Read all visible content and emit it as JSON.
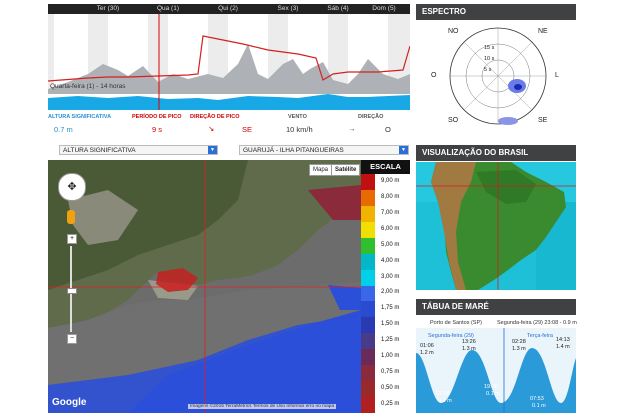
{
  "forecast": {
    "days": [
      "Ter (30)",
      "Qua (1)",
      "Qui (2)",
      "Sex (3)",
      "Sáb (4)",
      "Dom (5)"
    ],
    "cursor_label": "Quarta-feira (1) - 14 horas",
    "stats": [
      {
        "label": "ALTURA SIGNIFICATIVA",
        "value": "0.7 m",
        "color": "#2a8fd6"
      },
      {
        "label": "PERÍODO DE PICO",
        "value": "9 s",
        "color": "#d00000"
      },
      {
        "label": "DIREÇÃO DE PICO",
        "value": "↘",
        "color": "#d00000"
      },
      {
        "label": "",
        "value": "SE",
        "color": "#d00000"
      },
      {
        "label": "VENTO",
        "value": "10 km/h",
        "color": "#333333"
      },
      {
        "label": "",
        "value": "→",
        "color": "#333333"
      },
      {
        "label": "DIREÇÃO",
        "value": "O",
        "color": "#333333"
      }
    ]
  },
  "spectrum": {
    "title": "ESPECTRO",
    "directions": {
      "n": "NO",
      "ne": "NE",
      "l": "L",
      "o": "O",
      "so": "SO",
      "se": "SE"
    },
    "rings": [
      "15 s",
      "10 s",
      "5 s"
    ]
  },
  "map": {
    "parameter_select": "ALTURA SIGNIFICATIVA",
    "location_select": "GUARUJÁ - ILHA PITANGUEIRAS",
    "tab_map": "Mapa",
    "tab_satellite": "Satélite",
    "scale_title": "ESCALA",
    "scale": [
      {
        "label": "9,00 m",
        "color": "#c01010"
      },
      {
        "label": "8,00 m",
        "color": "#e86a00"
      },
      {
        "label": "7,00 m",
        "color": "#f0b400"
      },
      {
        "label": "6,00 m",
        "color": "#f0e000"
      },
      {
        "label": "5,00 m",
        "color": "#2fbf2f"
      },
      {
        "label": "4,00 m",
        "color": "#00b8c8"
      },
      {
        "label": "3,00 m",
        "color": "#00d0e8"
      },
      {
        "label": "2,00 m",
        "color": "#3a66e8"
      },
      {
        "label": "1,75 m",
        "color": "#2a4ad0"
      },
      {
        "label": "1,50 m",
        "color": "#2a3ab0"
      },
      {
        "label": "1,25 m",
        "color": "#4a3a8a"
      },
      {
        "label": "1,00 m",
        "color": "#6a2a5a"
      },
      {
        "label": "0,75 m",
        "color": "#8a2a3a"
      },
      {
        "label": "0,50 m",
        "color": "#9a2a2a"
      },
      {
        "label": "0,25 m",
        "color": "#b02020"
      }
    ],
    "google": "Google",
    "attribution": "Imagens ©2015 TerraMetrics   Termos de Uso   Informar erro no mapa"
  },
  "brasil": {
    "title": "VISUALIZAÇÃO DO BRASIL"
  },
  "tide": {
    "title": "TÁBUA DE MARÉ",
    "port": "Porto de Santos (SP)",
    "date_info": "Segunda-feira (29) 23:08 - 0.9 m",
    "day1": "Segunda-feira (29)",
    "day2": "Terça-feira",
    "highs": [
      {
        "time": "01:06",
        "h": "1.2 m"
      },
      {
        "time": "13:26",
        "h": "1.3 m"
      },
      {
        "time": "02:28",
        "h": "1.3 m"
      },
      {
        "time": "14:13",
        "h": "1.4 m"
      }
    ],
    "lows": [
      {
        "time": "07:09",
        "h": "0.2 m"
      },
      {
        "time": "19:36",
        "h": "0.1 m"
      },
      {
        "time": "07:53",
        "h": "0.1 m"
      }
    ]
  }
}
